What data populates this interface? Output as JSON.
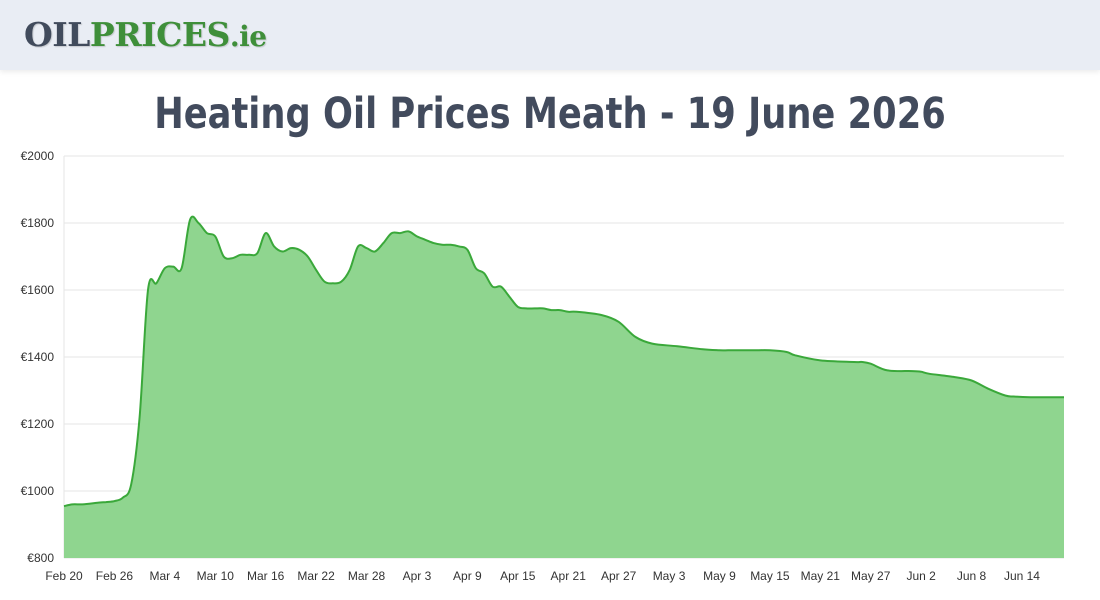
{
  "header": {
    "logo": {
      "part1": "OIL",
      "part2": "PRICES",
      "part3": ".ie"
    }
  },
  "title": "Heating Oil Prices Meath - 19 June 2026",
  "colors": {
    "header_bg": "#e9edf4",
    "logo_dark": "#414b5c",
    "logo_green": "#3f8f3a",
    "title": "#424b5d",
    "line": "#3aa83a",
    "area_fill": "#8fd58f",
    "grid": "#e6e6e6"
  },
  "chart_data": {
    "type": "area",
    "title": "Heating Oil Prices Meath - 19 June 2026",
    "xlabel": "",
    "ylabel": "",
    "ylim": [
      800,
      2000
    ],
    "y_ticks": [
      800,
      1000,
      1200,
      1400,
      1600,
      1800,
      2000
    ],
    "y_tick_labels": [
      "€800",
      "€1000",
      "€1200",
      "€1400",
      "€1600",
      "€1800",
      "€2000"
    ],
    "x_tick_labels": [
      "Feb 20",
      "Feb 26",
      "Mar 4",
      "Mar 10",
      "Mar 16",
      "Mar 22",
      "Mar 28",
      "Apr 3",
      "Apr 9",
      "Apr 15",
      "Apr 21",
      "Apr 27",
      "May 3",
      "May 9",
      "May 15",
      "May 21",
      "May 27",
      "Jun 2",
      "Jun 8",
      "Jun 14"
    ],
    "x_range": [
      "2026-02-20",
      "2026-06-19"
    ],
    "grid": true,
    "legend": "none",
    "series": [
      {
        "x": [
          "2026-02-20",
          "2026-02-21",
          "2026-02-22",
          "2026-02-23",
          "2026-02-24",
          "2026-02-25",
          "2026-02-26",
          "2026-02-27",
          "2026-02-28",
          "2026-03-01",
          "2026-03-02",
          "2026-03-03",
          "2026-03-04",
          "2026-03-05",
          "2026-03-06",
          "2026-03-07",
          "2026-03-08",
          "2026-03-09",
          "2026-03-10",
          "2026-03-11",
          "2026-03-12",
          "2026-03-13",
          "2026-03-14",
          "2026-03-15",
          "2026-03-16",
          "2026-03-17",
          "2026-03-18",
          "2026-03-19",
          "2026-03-20",
          "2026-03-21",
          "2026-03-22",
          "2026-03-23",
          "2026-03-24",
          "2026-03-25",
          "2026-03-26",
          "2026-03-27",
          "2026-03-28",
          "2026-03-29",
          "2026-03-30",
          "2026-03-31",
          "2026-04-01",
          "2026-04-02",
          "2026-04-03",
          "2026-04-04",
          "2026-04-05",
          "2026-04-06",
          "2026-04-07",
          "2026-04-08",
          "2026-04-09",
          "2026-04-10",
          "2026-04-11",
          "2026-04-12",
          "2026-04-13",
          "2026-04-14",
          "2026-04-15",
          "2026-04-16",
          "2026-04-17",
          "2026-04-18",
          "2026-04-19",
          "2026-04-20",
          "2026-04-21",
          "2026-04-22",
          "2026-04-25",
          "2026-04-27",
          "2026-04-29",
          "2026-05-01",
          "2026-05-04",
          "2026-05-07",
          "2026-05-09",
          "2026-05-10",
          "2026-05-11",
          "2026-05-13",
          "2026-05-15",
          "2026-05-17",
          "2026-05-18",
          "2026-05-21",
          "2026-05-25",
          "2026-05-26",
          "2026-05-27",
          "2026-05-29",
          "2026-06-01",
          "2026-06-02",
          "2026-06-03",
          "2026-06-06",
          "2026-06-08",
          "2026-06-10",
          "2026-06-12",
          "2026-06-13",
          "2026-06-15",
          "2026-06-17",
          "2026-06-19"
        ],
        "y": [
          955,
          960,
          960,
          962,
          965,
          967,
          970,
          980,
          1020,
          1220,
          1600,
          1620,
          1665,
          1670,
          1665,
          1810,
          1800,
          1770,
          1760,
          1700,
          1695,
          1705,
          1705,
          1710,
          1770,
          1730,
          1715,
          1725,
          1720,
          1700,
          1660,
          1625,
          1620,
          1625,
          1660,
          1730,
          1725,
          1715,
          1740,
          1770,
          1770,
          1775,
          1760,
          1750,
          1740,
          1735,
          1735,
          1730,
          1720,
          1665,
          1650,
          1610,
          1610,
          1580,
          1550,
          1545,
          1545,
          1545,
          1540,
          1540,
          1535,
          1535,
          1525,
          1505,
          1460,
          1440,
          1432,
          1423,
          1420,
          1420,
          1420,
          1420,
          1420,
          1415,
          1405,
          1390,
          1385,
          1385,
          1380,
          1360,
          1358,
          1356,
          1350,
          1340,
          1330,
          1305,
          1285,
          1282,
          1280,
          1280,
          1280
        ]
      }
    ]
  }
}
